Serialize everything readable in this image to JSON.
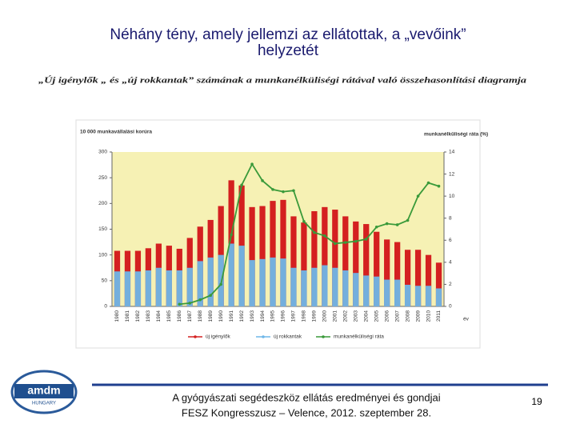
{
  "header": {
    "title_line1": "Néhány tény, amely jellemzi az ellátottak, a „vevőink”",
    "title_line2": "helyzetét"
  },
  "chart_data": {
    "type": "bar",
    "subtitle": "„Új igénylők „ és „új rokkantak” számának a munkanélküliségi rátával való összehasonlítási diagramja",
    "ylabel": "10 000 munkavállalási korúra",
    "y2label": "munkanélküliségi ráta (%)",
    "xlabel": "év",
    "categories": [
      "1980",
      "1981",
      "1982",
      "1983",
      "1984",
      "1985",
      "1986",
      "1987",
      "1988",
      "1989",
      "1990",
      "1991",
      "1992",
      "1993",
      "1994",
      "1995",
      "1996",
      "1997",
      "1998",
      "1999",
      "2000",
      "2001",
      "2002",
      "2003",
      "2004",
      "2005",
      "2006",
      "2007",
      "2008",
      "2009",
      "2010",
      "2011"
    ],
    "series": [
      {
        "name": "új igénylők",
        "color": "#d42020",
        "values": [
          108,
          108,
          108,
          113,
          122,
          118,
          112,
          133,
          155,
          168,
          195,
          245,
          235,
          193,
          195,
          205,
          207,
          175,
          163,
          185,
          193,
          188,
          175,
          165,
          160,
          145,
          130,
          125,
          110,
          110,
          100,
          85
        ]
      },
      {
        "name": "új rokkantak",
        "color": "#6fb7e8",
        "values": [
          68,
          68,
          68,
          70,
          75,
          70,
          70,
          75,
          88,
          95,
          100,
          122,
          118,
          90,
          92,
          95,
          93,
          75,
          70,
          75,
          80,
          75,
          70,
          65,
          60,
          58,
          52,
          52,
          42,
          40,
          40,
          35
        ]
      },
      {
        "name": "munkanélküliségi ráta",
        "color": "#3a9a3a",
        "axis": "y2",
        "type": "line",
        "values": [
          null,
          null,
          null,
          null,
          null,
          null,
          0.2,
          0.3,
          0.6,
          1.0,
          2.0,
          6.5,
          11.0,
          12.9,
          11.4,
          10.6,
          10.4,
          10.5,
          7.7,
          6.7,
          6.4,
          5.7,
          5.8,
          5.9,
          6.1,
          7.2,
          7.5,
          7.4,
          7.8,
          10.0,
          11.2,
          10.9
        ]
      }
    ],
    "ylim": [
      0,
      300
    ],
    "yticks": [
      0,
      50,
      100,
      150,
      200,
      250,
      300
    ],
    "y2lim": [
      0,
      14
    ],
    "y2ticks": [
      0,
      2,
      4,
      6,
      8,
      10,
      12,
      14
    ]
  },
  "footer": {
    "line1": "A gyógyászati segédeszköz ellátás eredményei és gondjai",
    "line2": "FESZ Kongresszusz – Velence, 2012. szeptember 28.",
    "page": "19"
  },
  "logo": {
    "name": "amdm",
    "country": "HUNGARY"
  }
}
